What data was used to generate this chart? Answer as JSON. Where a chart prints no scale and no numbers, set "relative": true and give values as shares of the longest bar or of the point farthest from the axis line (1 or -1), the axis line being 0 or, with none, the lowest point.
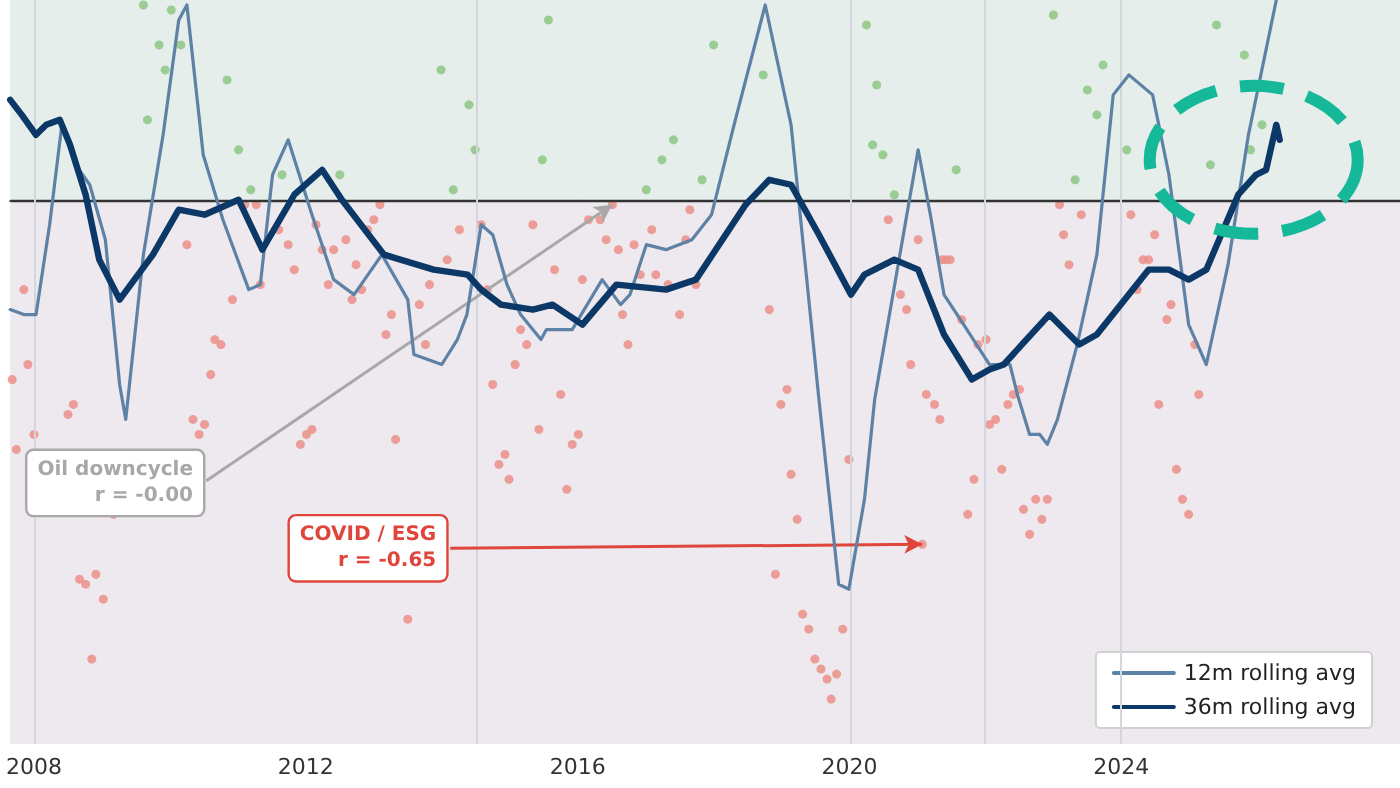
{
  "chart_data": {
    "type": "scatter",
    "relative": true,
    "xlim": [
      2007.65,
      2028.1
    ],
    "xticks": [
      2008,
      2012,
      2016,
      2020,
      2024
    ],
    "legend": "bottom right",
    "series": [
      {
        "marker": "circle",
        "color": "#8cc784",
        "x": [
          2009.61,
          2009.67,
          2009.84,
          2009.93,
          2010.02,
          2010.16,
          2010.84,
          2011.01,
          2011.19,
          2011.65,
          2012.5,
          2013.99,
          2014.17,
          2014.4,
          2014.49,
          2015.48,
          2015.57,
          2017.01,
          2017.24,
          2017.41,
          2017.83,
          2018.0,
          2018.73,
          2020.25,
          2020.34,
          2020.4,
          2020.49,
          2020.66,
          2021.57,
          2023.0,
          2023.32,
          2023.5,
          2023.64,
          2023.73,
          2024.08,
          2025.31,
          2025.4,
          2025.81,
          2025.9,
          2026.07
        ],
        "values": [
          0.39,
          0.16,
          0.31,
          0.26,
          0.38,
          0.31,
          0.24,
          0.1,
          0.02,
          0.05,
          0.05,
          0.26,
          0.02,
          0.19,
          0.1,
          0.08,
          0.36,
          0.02,
          0.08,
          0.12,
          0.04,
          0.31,
          0.25,
          0.35,
          0.11,
          0.23,
          0.09,
          0.01,
          0.06,
          0.37,
          0.04,
          0.22,
          0.17,
          0.27,
          0.1,
          0.07,
          0.35,
          0.29,
          0.1,
          0.15
        ]
      },
      {
        "marker": "circle",
        "color": "#eb8f88",
        "x": [
          2007.68,
          2007.74,
          2007.85,
          2007.91,
          2008.0,
          2008.5,
          2008.58,
          2008.67,
          2008.76,
          2008.85,
          2008.91,
          2009.02,
          2009.17,
          2010.25,
          2010.34,
          2010.43,
          2010.51,
          2010.6,
          2010.66,
          2010.75,
          2010.92,
          2011.1,
          2011.27,
          2011.33,
          2011.6,
          2011.74,
          2011.83,
          2011.92,
          2012.01,
          2012.09,
          2012.15,
          2012.24,
          2012.33,
          2012.41,
          2012.59,
          2012.68,
          2012.74,
          2012.82,
          2012.91,
          2013.0,
          2013.09,
          2013.18,
          2013.26,
          2013.32,
          2013.5,
          2013.67,
          2013.76,
          2013.82,
          2014.08,
          2014.26,
          2014.58,
          2014.67,
          2014.75,
          2014.84,
          2014.93,
          2014.99,
          2015.08,
          2015.16,
          2015.25,
          2015.34,
          2015.43,
          2015.66,
          2015.75,
          2015.84,
          2015.92,
          2016.01,
          2016.07,
          2016.16,
          2016.33,
          2016.42,
          2016.51,
          2016.6,
          2016.66,
          2016.74,
          2016.83,
          2016.92,
          2017.09,
          2017.15,
          2017.33,
          2017.5,
          2017.59,
          2017.65,
          2017.74,
          2018.82,
          2018.91,
          2018.99,
          2019.08,
          2019.14,
          2019.23,
          2019.31,
          2019.4,
          2019.49,
          2019.58,
          2019.67,
          2019.73,
          2019.81,
          2019.9,
          2019.99,
          2020.57,
          2020.75,
          2020.84,
          2020.9,
          2021.01,
          2021.07,
          2021.13,
          2021.25,
          2021.33,
          2021.36,
          2021.42,
          2021.48,
          2021.65,
          2021.74,
          2021.83,
          2021.89,
          2022.01,
          2022.06,
          2022.15,
          2022.24,
          2022.33,
          2022.41,
          2022.5,
          2022.56,
          2022.65,
          2022.74,
          2022.83,
          2022.91,
          2023.09,
          2023.15,
          2023.23,
          2023.41,
          2024.14,
          2024.23,
          2024.32,
          2024.4,
          2024.49,
          2024.55,
          2024.67,
          2024.73,
          2024.81,
          2024.9,
          2024.99,
          2025.08,
          2025.14
        ],
        "values": [
          -0.36,
          -0.5,
          -0.18,
          -0.33,
          -0.47,
          -0.43,
          -0.41,
          -0.76,
          -0.77,
          -0.92,
          -0.75,
          -0.8,
          -0.63,
          -0.09,
          -0.44,
          -0.47,
          -0.45,
          -0.35,
          -0.28,
          -0.29,
          -0.2,
          -0.01,
          -0.01,
          -0.17,
          -0.06,
          -0.09,
          -0.14,
          -0.49,
          -0.47,
          -0.46,
          -0.05,
          -0.1,
          -0.17,
          -0.1,
          -0.08,
          -0.2,
          -0.13,
          -0.18,
          -0.06,
          -0.04,
          -0.01,
          -0.27,
          -0.23,
          -0.48,
          -0.84,
          -0.21,
          -0.29,
          -0.17,
          -0.12,
          -0.06,
          -0.05,
          -0.18,
          -0.37,
          -0.53,
          -0.51,
          -0.56,
          -0.33,
          -0.26,
          -0.29,
          -0.05,
          -0.46,
          -0.14,
          -0.39,
          -0.58,
          -0.49,
          -0.47,
          -0.16,
          -0.04,
          -0.04,
          -0.08,
          -0.01,
          -0.1,
          -0.23,
          -0.29,
          -0.09,
          -0.15,
          -0.06,
          -0.15,
          -0.17,
          -0.23,
          -0.08,
          -0.02,
          -0.17,
          -0.22,
          -0.75,
          -0.41,
          -0.38,
          -0.55,
          -0.64,
          -0.83,
          -0.86,
          -0.92,
          -0.94,
          -0.96,
          -1,
          -0.95,
          -0.86,
          -0.52,
          -0.04,
          -0.19,
          -0.22,
          -0.33,
          -0.08,
          -0.69,
          -0.39,
          -0.41,
          -0.44,
          -0.12,
          -0.12,
          -0.12,
          -0.24,
          -0.63,
          -0.56,
          -0.29,
          -0.28,
          -0.45,
          -0.44,
          -0.54,
          -0.41,
          -0.39,
          -0.38,
          -0.62,
          -0.67,
          -0.6,
          -0.64,
          -0.6,
          -0.01,
          -0.07,
          -0.13,
          -0.03,
          -0.03,
          -0.18,
          -0.12,
          -0.12,
          -0.07,
          -0.41,
          -0.24,
          -0.21,
          -0.54,
          -0.6,
          -0.63,
          -0.29,
          -0.39
        ]
      },
      {
        "type": "line",
        "name": "12m rolling avg",
        "marker": "none",
        "color": "#5e81a6",
        "x": [
          2007.65,
          2007.85,
          2008.03,
          2008.23,
          2008.41,
          2008.61,
          2008.82,
          2009.05,
          2009.26,
          2009.35,
          2009.61,
          2009.9,
          2010.13,
          2010.25,
          2010.49,
          2010.78,
          2011.16,
          2011.33,
          2011.51,
          2011.74,
          2012.09,
          2012.41,
          2012.71,
          2013.12,
          2013.5,
          2013.59,
          2014.0,
          2014.23,
          2014.37,
          2014.58,
          2014.75,
          2014.96,
          2015.16,
          2015.46,
          2015.54,
          2015.92,
          2016.36,
          2016.63,
          2016.77,
          2017.01,
          2017.3,
          2017.68,
          2017.97,
          2018.32,
          2018.76,
          2019.14,
          2019.55,
          2019.84,
          2019.99,
          2020.22,
          2020.37,
          2021.01,
          2021.19,
          2021.39,
          2021.68,
          2022.06,
          2022.36,
          2022.47,
          2022.65,
          2022.8,
          2022.91,
          2023.06,
          2023.35,
          2023.64,
          2023.88,
          2024.11,
          2024.46,
          2024.7,
          2024.99,
          2025.25,
          2025.57,
          2025.87,
          2026.28
        ],
        "values": [
          -0.22,
          -0.23,
          -0.23,
          -0.05,
          0.15,
          0.07,
          0.03,
          -0.08,
          -0.37,
          -0.44,
          -0.11,
          0.13,
          0.36,
          0.39,
          0.09,
          -0.04,
          -0.18,
          -0.17,
          0.05,
          0.12,
          -0.03,
          -0.16,
          -0.19,
          -0.11,
          -0.2,
          -0.31,
          -0.33,
          -0.28,
          -0.23,
          -0.05,
          -0.07,
          -0.17,
          -0.23,
          -0.28,
          -0.26,
          -0.26,
          -0.16,
          -0.21,
          -0.19,
          -0.09,
          -0.1,
          -0.08,
          -0.03,
          0.16,
          0.39,
          0.15,
          -0.4,
          -0.77,
          -0.78,
          -0.6,
          -0.4,
          0.1,
          -0.03,
          -0.19,
          -0.25,
          -0.33,
          -0.33,
          -0.39,
          -0.47,
          -0.47,
          -0.49,
          -0.44,
          -0.29,
          -0.11,
          0.21,
          0.25,
          0.21,
          0.05,
          -0.25,
          -0.33,
          -0.13,
          0.13,
          0.4
        ]
      },
      {
        "type": "line",
        "name": "36m rolling avg",
        "marker": "none",
        "color": "#0b3866",
        "x": [
          2007.65,
          2007.82,
          2008.03,
          2008.18,
          2008.38,
          2008.53,
          2008.76,
          2008.96,
          2009.26,
          2009.75,
          2010.13,
          2010.51,
          2011.01,
          2011.36,
          2011.83,
          2012.24,
          2012.53,
          2013.15,
          2013.88,
          2014.38,
          2014.58,
          2014.87,
          2015.34,
          2015.63,
          2016.07,
          2016.57,
          2017.3,
          2017.74,
          2018.47,
          2018.82,
          2019.14,
          2019.55,
          2020.02,
          2020.22,
          2020.66,
          2021.01,
          2021.39,
          2021.8,
          2022.06,
          2022.27,
          2022.94,
          2023.38,
          2023.64,
          2024.4,
          2024.7,
          2024.99,
          2025.25,
          2025.72,
          2025.98,
          2026.13,
          2026.28,
          2026.33
        ],
        "values": [
          0.2,
          0.17,
          0.13,
          0.15,
          0.16,
          0.11,
          0.01,
          -0.12,
          -0.2,
          -0.11,
          -0.02,
          -0.03,
          0.0,
          -0.1,
          0.01,
          0.06,
          0.0,
          -0.11,
          -0.14,
          -0.15,
          -0.18,
          -0.21,
          -0.22,
          -0.21,
          -0.25,
          -0.17,
          -0.18,
          -0.16,
          -0.01,
          0.04,
          0.03,
          -0.07,
          -0.19,
          -0.15,
          -0.12,
          -0.14,
          -0.27,
          -0.36,
          -0.34,
          -0.33,
          -0.23,
          -0.29,
          -0.27,
          -0.14,
          -0.14,
          -0.16,
          -0.14,
          0.01,
          0.05,
          0.06,
          0.15,
          0.12
        ]
      }
    ],
    "ref_lines": [
      {
        "axis": "y",
        "value": 0,
        "color": "#333333"
      },
      {
        "axis": "x",
        "value": 2008,
        "color": "#d3d6de"
      },
      {
        "axis": "x",
        "value": 2014.5,
        "color": "#d3d6de"
      },
      {
        "axis": "x",
        "value": 2020,
        "color": "#d3d6de"
      },
      {
        "axis": "x",
        "value": 2022,
        "color": "#d3d6de"
      },
      {
        "axis": "x",
        "value": 2024,
        "color": "#d3d6de"
      }
    ],
    "bands": [
      {
        "axis": "y",
        "from": 0,
        "to": 0.4,
        "color": "#e6eeeb"
      },
      {
        "axis": "y",
        "from": -1.09,
        "to": 0,
        "color": "#ede9ee"
      }
    ],
    "annotations": [
      {
        "text": "Oil downcycle\nr = -0.00",
        "x": 2016.51,
        "y": -0.01
      },
      {
        "text": "COVID / ESG\nr = -0.65",
        "x": 2021.07,
        "y": -0.69
      }
    ]
  }
}
